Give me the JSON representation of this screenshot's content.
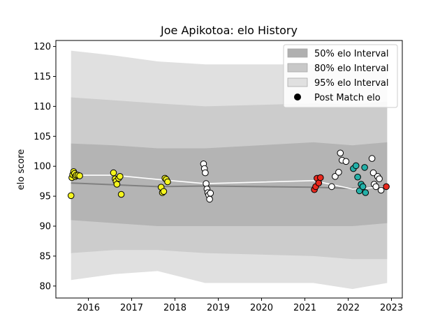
{
  "chart_data": {
    "type": "scatter",
    "title": "Joe Apikotoa: elo History",
    "xlabel": "",
    "ylabel": "elo score",
    "xlim": [
      2015.25,
      2023.25
    ],
    "ylim": [
      78,
      121
    ],
    "x_ticks": [
      2016,
      2017,
      2018,
      2019,
      2020,
      2021,
      2022,
      2023
    ],
    "y_ticks": [
      80,
      85,
      90,
      95,
      100,
      105,
      110,
      115,
      120
    ],
    "grid": false,
    "legend_position": "top-right",
    "legend": [
      {
        "label": "50% elo Interval",
        "kind": "band",
        "color": "#b0b0b0"
      },
      {
        "label": "80% elo Interval",
        "kind": "band",
        "color": "#c8c8c8"
      },
      {
        "label": "95% elo Interval",
        "kind": "band",
        "color": "#e0e0e0"
      },
      {
        "label": "Post Match elo",
        "kind": "marker",
        "color": "#000000"
      }
    ],
    "bands": [
      {
        "level": "95%",
        "color": "#e0e0e0",
        "x": [
          2015.6,
          2016.6,
          2017.6,
          2018.7,
          2021.2,
          2022.1,
          2022.9
        ],
        "lower": [
          81.0,
          82.0,
          82.5,
          80.5,
          80.5,
          79.5,
          80.5
        ],
        "upper": [
          119.3,
          118.5,
          117.5,
          117.0,
          117.0,
          116.5,
          116.5
        ]
      },
      {
        "level": "80%",
        "color": "#cccccc",
        "x": [
          2015.6,
          2016.6,
          2017.6,
          2018.7,
          2021.2,
          2022.1,
          2022.9
        ],
        "lower": [
          85.5,
          86.0,
          86.0,
          85.5,
          85.0,
          84.5,
          84.5
        ],
        "upper": [
          111.5,
          111.0,
          110.5,
          110.0,
          110.5,
          110.3,
          110.8
        ]
      },
      {
        "level": "50%",
        "color": "#b4b4b4",
        "x": [
          2015.6,
          2016.6,
          2017.6,
          2018.7,
          2021.2,
          2022.1,
          2022.9
        ],
        "lower": [
          91.0,
          90.5,
          90.0,
          90.0,
          90.0,
          90.0,
          90.5
        ],
        "upper": [
          103.8,
          103.5,
          103.0,
          103.0,
          104.0,
          103.5,
          104.0
        ]
      }
    ],
    "median_line": {
      "color": "#808080",
      "x": [
        2015.6,
        2016.6,
        2017.6,
        2018.7,
        2021.2,
        2022.1,
        2022.9
      ],
      "y": [
        97.2,
        96.9,
        96.6,
        96.7,
        96.5,
        96.3,
        96.6
      ]
    },
    "mean_line": {
      "color": "#ffffff",
      "x": [
        2015.6,
        2016.6,
        2017.6,
        2018.7,
        2021.2,
        2022.1,
        2022.9
      ],
      "y": [
        98.5,
        98.5,
        97.8,
        97.1,
        97.6,
        96.2,
        96.6
      ]
    },
    "series": [
      {
        "color": "#f5f51e",
        "x": [
          2015.6,
          2015.62,
          2015.64,
          2015.66,
          2015.68,
          2015.7,
          2015.72,
          2015.76,
          2015.8
        ],
        "y": [
          95.1,
          98.1,
          98.6,
          99.1,
          98.8,
          98.3,
          98.5,
          98.5,
          98.4
        ]
      },
      {
        "color": "#f5f51e",
        "x": [
          2016.58,
          2016.62,
          2016.64,
          2016.66,
          2016.7,
          2016.73,
          2016.76
        ],
        "y": [
          98.9,
          97.9,
          97.5,
          97.0,
          98.0,
          98.3,
          95.3
        ]
      },
      {
        "color": "#f5f51e",
        "x": [
          2017.68,
          2017.71,
          2017.74,
          2017.77,
          2017.8,
          2017.83
        ],
        "y": [
          96.5,
          95.6,
          95.8,
          98.0,
          97.8,
          97.4
        ]
      },
      {
        "color": "#ffffff",
        "x": [
          2018.66,
          2018.68,
          2018.7,
          2018.72,
          2018.74,
          2018.76,
          2018.78,
          2018.8,
          2018.82
        ],
        "y": [
          100.4,
          99.6,
          98.9,
          97.1,
          96.2,
          95.6,
          95.2,
          94.5,
          95.5
        ]
      },
      {
        "color": "#e8291e",
        "x": [
          2021.22,
          2021.25,
          2021.28,
          2021.32,
          2021.36
        ],
        "y": [
          96.1,
          96.6,
          98.0,
          97.2,
          98.1
        ]
      },
      {
        "color": "#ffffff",
        "x": [
          2021.62,
          2021.7,
          2021.78,
          2021.82,
          2021.86,
          2021.95
        ],
        "y": [
          96.6,
          98.3,
          99.0,
          102.2,
          101.0,
          100.8
        ]
      },
      {
        "color": "#24b0a8",
        "x": [
          2022.12,
          2022.18,
          2022.22,
          2022.26,
          2022.3,
          2022.34,
          2022.38,
          2022.4
        ],
        "y": [
          99.6,
          100.1,
          98.2,
          95.9,
          97.0,
          96.6,
          99.8,
          95.6
        ]
      },
      {
        "color": "#ffffff",
        "x": [
          2022.55,
          2022.58,
          2022.6,
          2022.64,
          2022.68,
          2022.72,
          2022.76
        ],
        "y": [
          101.3,
          98.9,
          97.0,
          96.6,
          98.3,
          97.9,
          96.0
        ]
      },
      {
        "color": "#e8291e",
        "x": [
          2022.88
        ],
        "y": [
          96.6
        ]
      }
    ]
  }
}
